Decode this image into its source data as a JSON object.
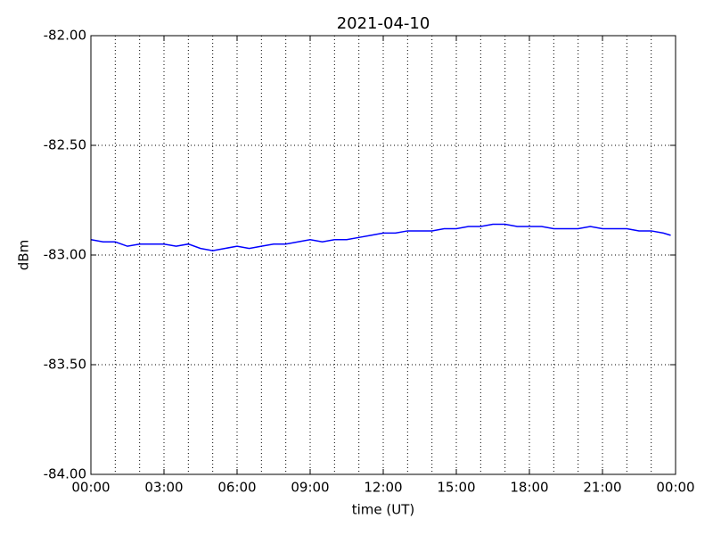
{
  "chart_data": {
    "type": "line",
    "title": "2021-04-10",
    "xlabel": "time (UT)",
    "ylabel": "dBm",
    "x": [
      0,
      0.5,
      1,
      1.5,
      2,
      2.5,
      3,
      3.5,
      4,
      4.5,
      5,
      5.5,
      6,
      6.5,
      7,
      7.5,
      8,
      8.5,
      9,
      9.5,
      10,
      10.5,
      11,
      11.5,
      12,
      12.5,
      13,
      13.5,
      14,
      14.5,
      15,
      15.5,
      16,
      16.5,
      17,
      17.5,
      18,
      18.5,
      19,
      19.5,
      20,
      20.5,
      21,
      21.5,
      22,
      22.5,
      23,
      23.5,
      23.8
    ],
    "series": [
      {
        "name": "dBm",
        "color": "#0000ff",
        "values": [
          -82.93,
          -82.94,
          -82.94,
          -82.96,
          -82.95,
          -82.95,
          -82.95,
          -82.96,
          -82.95,
          -82.97,
          -82.98,
          -82.97,
          -82.96,
          -82.97,
          -82.96,
          -82.95,
          -82.95,
          -82.94,
          -82.93,
          -82.94,
          -82.93,
          -82.93,
          -82.92,
          -82.91,
          -82.9,
          -82.9,
          -82.89,
          -82.89,
          -82.89,
          -82.88,
          -82.88,
          -82.87,
          -82.87,
          -82.86,
          -82.86,
          -82.87,
          -82.87,
          -82.87,
          -82.88,
          -82.88,
          -82.88,
          -82.87,
          -82.88,
          -82.88,
          -82.88,
          -82.89,
          -82.89,
          -82.9,
          -82.91
        ]
      }
    ],
    "xlim": [
      0,
      24
    ],
    "xticks": [
      {
        "value": 0,
        "label": "00:00"
      },
      {
        "value": 3,
        "label": "03:00"
      },
      {
        "value": 6,
        "label": "06:00"
      },
      {
        "value": 9,
        "label": "09:00"
      },
      {
        "value": 12,
        "label": "12:00"
      },
      {
        "value": 15,
        "label": "15:00"
      },
      {
        "value": 18,
        "label": "18:00"
      },
      {
        "value": 21,
        "label": "21:00"
      },
      {
        "value": 24,
        "label": "00:00"
      }
    ],
    "xgrid": [
      1,
      2,
      3,
      4,
      5,
      6,
      7,
      8,
      9,
      10,
      11,
      12,
      13,
      14,
      15,
      16,
      17,
      18,
      19,
      20,
      21,
      22,
      23
    ],
    "ylim": [
      -84,
      -82
    ],
    "yticks": [
      {
        "value": -84,
        "label": "-84.00"
      },
      {
        "value": -83.5,
        "label": "-83.50"
      },
      {
        "value": -83,
        "label": "-83.00"
      },
      {
        "value": -82.5,
        "label": "-82.50"
      },
      {
        "value": -82,
        "label": "-82.00"
      }
    ],
    "grid": true
  }
}
